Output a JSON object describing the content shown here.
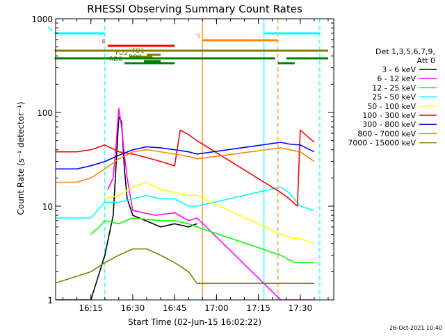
{
  "chart_data": {
    "type": "line",
    "title": "RHESSI Observing Summary Count Rates",
    "xlabel": "Start Time (02-Jun-15 16:02:22)",
    "ylabel": "Count Rate (s⁻¹ detector⁻¹)",
    "y_scale": "log",
    "ylim": [
      1,
      1000
    ],
    "xlim": [
      "16:02:22",
      "17:42:00"
    ],
    "x_ticks": [
      "16:15",
      "16:30",
      "16:45",
      "17:00",
      "17:15",
      "17:30"
    ],
    "y_ticks": [
      "1",
      "10",
      "100",
      "1000"
    ],
    "grid": false,
    "legend_title": [
      "Det 1,3,5,6,7,9,",
      "Att 0"
    ],
    "legend_position": "right",
    "footer": "26-Oct-2021 10:40",
    "series": [
      {
        "name": "3 - 6 keV",
        "color": "#000000",
        "x": [
          "16:02",
          "16:15",
          "16:20",
          "16:23",
          "16:25",
          "16:26",
          "16:27",
          "16:28",
          "16:30",
          "16:40",
          "16:45",
          "16:50",
          "16:53"
        ],
        "values": [
          1.0,
          1.0,
          3.0,
          8.0,
          90.0,
          80.0,
          25.0,
          12.0,
          8.0,
          6.0,
          6.5,
          6.0,
          6.5
        ]
      },
      {
        "name": "6 - 12 keV",
        "color": "#ff00ff",
        "x": [
          "16:21",
          "16:23",
          "16:24",
          "16:25",
          "16:26",
          "16:27",
          "16:28",
          "16:30",
          "16:38",
          "16:45",
          "16:50",
          "16:53",
          "17:23",
          "17:27",
          "17:28",
          "17:35"
        ],
        "values": [
          15.0,
          20.0,
          45.0,
          110.0,
          70.0,
          35.0,
          20.0,
          9.0,
          8.0,
          8.5,
          7.0,
          7.5,
          1.0,
          1.0,
          1.0,
          1.0
        ]
      },
      {
        "name": "12 - 25 keV",
        "color": "#00ff00",
        "x": [
          "16:15",
          "16:18",
          "16:20",
          "16:25",
          "16:30",
          "16:40",
          "16:45",
          "16:50",
          "16:53",
          "17:23",
          "17:28",
          "17:30",
          "17:35"
        ],
        "values": [
          5.0,
          6.0,
          7.0,
          6.5,
          7.5,
          7.0,
          7.0,
          6.5,
          6.0,
          3.0,
          2.5,
          2.5,
          2.5
        ]
      },
      {
        "name": "25 - 50 keV",
        "color": "#00ffff",
        "x": [
          "16:02",
          "16:10",
          "16:15",
          "16:20",
          "16:25",
          "16:30",
          "16:35",
          "16:40",
          "16:45",
          "16:50",
          "16:53",
          "17:23",
          "17:26",
          "17:30",
          "17:35"
        ],
        "values": [
          7.5,
          7.5,
          7.5,
          11.0,
          11.0,
          12.0,
          13.0,
          12.0,
          12.0,
          10.0,
          10.0,
          16.0,
          14.0,
          10.0,
          9.0
        ]
      },
      {
        "name": "50 - 100 keV",
        "color": "#ffff00",
        "x": [
          "16:20",
          "16:25",
          "16:30",
          "16:35",
          "16:40",
          "16:45",
          "16:50",
          "16:53",
          "17:23",
          "17:28",
          "17:30",
          "17:35"
        ],
        "values": [
          12.0,
          13.0,
          16.0,
          18.0,
          15.0,
          14.0,
          13.0,
          13.0,
          5.0,
          4.5,
          4.5,
          4.0
        ]
      },
      {
        "name": "100 - 300 keV",
        "color": "#ff0000",
        "x": [
          "16:02",
          "16:10",
          "16:15",
          "16:20",
          "16:25",
          "16:30",
          "16:35",
          "16:40",
          "16:45",
          "16:47",
          "16:50",
          "16:53",
          "17:23",
          "17:26",
          "17:29",
          "17:30",
          "17:35"
        ],
        "values": [
          38.0,
          38.0,
          40.0,
          45.0,
          38.0,
          36.0,
          33.0,
          30.0,
          27.0,
          65.0,
          58.0,
          50.0,
          14.0,
          12.0,
          10.0,
          65.0,
          48.0
        ]
      },
      {
        "name": "300 - 800 keV",
        "color": "#0000ff",
        "x": [
          "16:02",
          "16:10",
          "16:15",
          "16:20",
          "16:25",
          "16:30",
          "16:35",
          "16:40",
          "16:45",
          "16:50",
          "16:53",
          "17:23",
          "17:26",
          "17:30",
          "17:35"
        ],
        "values": [
          25.0,
          25.0,
          27.0,
          30.0,
          35.0,
          40.0,
          43.0,
          42.0,
          40.0,
          38.0,
          36.0,
          48.0,
          46.0,
          45.0,
          38.0
        ]
      },
      {
        "name": "800 - 7000 keV",
        "color": "#ff8800",
        "x": [
          "16:02",
          "16:10",
          "16:15",
          "16:20",
          "16:25",
          "16:30",
          "16:35",
          "16:40",
          "16:45",
          "16:50",
          "16:53",
          "17:23",
          "17:26",
          "17:30",
          "17:35"
        ],
        "values": [
          18.0,
          18.0,
          20.0,
          25.0,
          32.0,
          38.0,
          40.0,
          38.0,
          36.0,
          34.0,
          32.0,
          42.0,
          40.0,
          38.0,
          30.0
        ]
      },
      {
        "name": "7000 - 15000 keV",
        "color": "#808000",
        "x": [
          "16:02",
          "16:15",
          "16:20",
          "16:25",
          "16:30",
          "16:35",
          "16:40",
          "16:45",
          "16:50",
          "16:53",
          "17:23",
          "17:30",
          "17:35"
        ],
        "values": [
          1.5,
          2.0,
          2.5,
          3.0,
          3.5,
          3.5,
          3.0,
          2.5,
          2.0,
          1.5,
          1.5,
          1.5,
          1.5
        ]
      }
    ],
    "vertical_markers": [
      {
        "time": "16:20",
        "color": "#00ffff",
        "style": "dashed"
      },
      {
        "time": "16:55",
        "color": "#ff8800",
        "style": "solid"
      },
      {
        "time": "17:17",
        "color": "#00ffff",
        "style": "solid"
      },
      {
        "time": "17:22",
        "color": "#ff8800",
        "style": "dashed"
      },
      {
        "time": "17:37",
        "color": "#00ffff",
        "style": "dashed"
      }
    ],
    "flag_bars": [
      {
        "label": "N",
        "color": "#00ffff",
        "segments": [
          [
            "16:02",
            "16:20"
          ],
          [
            "17:17",
            "17:37"
          ]
        ]
      },
      {
        "label": "S",
        "color": "#ff8800",
        "segments": [
          [
            "16:55",
            "17:22"
          ]
        ]
      },
      {
        "label": "F",
        "color": "#ff0000",
        "segments": [
          [
            "16:21",
            "16:45"
          ]
        ]
      },
      {
        "label": "",
        "color": "#808000",
        "segments": [
          [
            "16:02",
            "17:40"
          ]
        ]
      },
      {
        "label": "FD1",
        "color": "#808000",
        "segments": [
          [
            "16:35",
            "16:40"
          ]
        ]
      },
      {
        "label": "FD2",
        "color": "#808000",
        "segments": [
          [
            "16:29",
            "16:37"
          ]
        ]
      },
      {
        "label": "",
        "color": "#008000",
        "segments": [
          [
            "16:02",
            "17:21"
          ],
          [
            "17:25",
            "17:40"
          ]
        ]
      },
      {
        "label": "RD0",
        "color": "#008000",
        "segments": [
          [
            "16:34",
            "16:40"
          ]
        ]
      },
      {
        "label": "RD6",
        "color": "#008000",
        "segments": [
          [
            "16:27",
            "16:45"
          ],
          [
            "17:22",
            "17:28"
          ]
        ]
      }
    ]
  }
}
